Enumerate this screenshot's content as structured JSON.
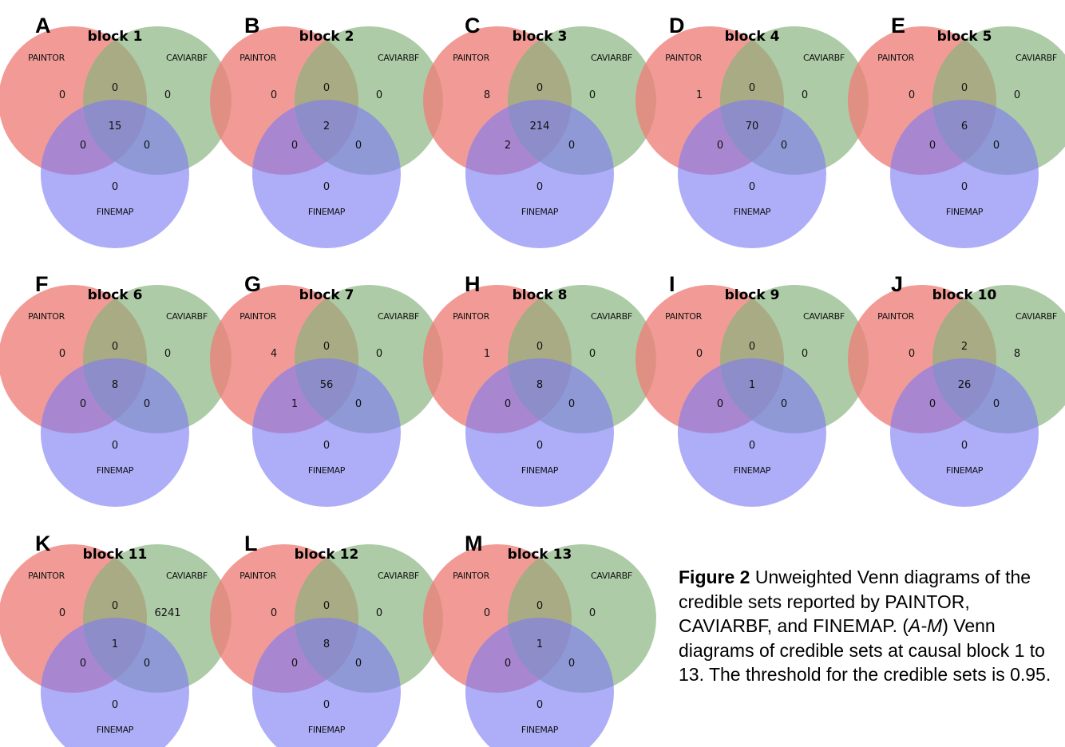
{
  "set_names": [
    "PAINTOR",
    "CAVIARBF",
    "FINEMAP"
  ],
  "colors": {
    "set_a": "#ee7f78",
    "set_b": "#86b27c",
    "set_c": "#7b7bf4"
  },
  "panels": [
    {
      "letter": "A",
      "title": "block 1",
      "counts": {
        "a": "0",
        "b": "0",
        "ab": "0",
        "abc": "15",
        "ac": "0",
        "bc": "0",
        "c": "0"
      }
    },
    {
      "letter": "B",
      "title": "block 2",
      "counts": {
        "a": "0",
        "b": "0",
        "ab": "0",
        "abc": "2",
        "ac": "0",
        "bc": "0",
        "c": "0"
      }
    },
    {
      "letter": "C",
      "title": "block 3",
      "counts": {
        "a": "8",
        "b": "0",
        "ab": "0",
        "abc": "214",
        "ac": "2",
        "bc": "0",
        "c": "0"
      }
    },
    {
      "letter": "D",
      "title": "block 4",
      "counts": {
        "a": "1",
        "b": "0",
        "ab": "0",
        "abc": "70",
        "ac": "0",
        "bc": "0",
        "c": "0"
      }
    },
    {
      "letter": "E",
      "title": "block 5",
      "counts": {
        "a": "0",
        "b": "0",
        "ab": "0",
        "abc": "6",
        "ac": "0",
        "bc": "0",
        "c": "0"
      }
    },
    {
      "letter": "F",
      "title": "block 6",
      "counts": {
        "a": "0",
        "b": "0",
        "ab": "0",
        "abc": "8",
        "ac": "0",
        "bc": "0",
        "c": "0"
      }
    },
    {
      "letter": "G",
      "title": "block 7",
      "counts": {
        "a": "4",
        "b": "0",
        "ab": "0",
        "abc": "56",
        "ac": "1",
        "bc": "0",
        "c": "0"
      }
    },
    {
      "letter": "H",
      "title": "block 8",
      "counts": {
        "a": "1",
        "b": "0",
        "ab": "0",
        "abc": "8",
        "ac": "0",
        "bc": "0",
        "c": "0"
      }
    },
    {
      "letter": "I",
      "title": "block 9",
      "counts": {
        "a": "0",
        "b": "0",
        "ab": "0",
        "abc": "1",
        "ac": "0",
        "bc": "0",
        "c": "0"
      }
    },
    {
      "letter": "J",
      "title": "block 10",
      "counts": {
        "a": "0",
        "b": "8",
        "ab": "2",
        "abc": "26",
        "ac": "0",
        "bc": "0",
        "c": "0"
      }
    },
    {
      "letter": "K",
      "title": "block 11",
      "counts": {
        "a": "0",
        "b": "6241",
        "ab": "0",
        "abc": "1",
        "ac": "0",
        "bc": "0",
        "c": "0"
      }
    },
    {
      "letter": "L",
      "title": "block 12",
      "counts": {
        "a": "0",
        "b": "0",
        "ab": "0",
        "abc": "8",
        "ac": "0",
        "bc": "0",
        "c": "0"
      }
    },
    {
      "letter": "M",
      "title": "block 13",
      "counts": {
        "a": "0",
        "b": "0",
        "ab": "0",
        "abc": "1",
        "ac": "0",
        "bc": "0",
        "c": "0"
      }
    }
  ],
  "caption": {
    "figure_label": "Figure 2",
    "text_1": " Unweighted Venn diagrams of the credible sets reported by PAINTOR, CAVIARBF, and FINEMAP. (",
    "range": "A-M",
    "text_2": ") Venn diagrams of credible sets at causal block 1 to 13. The threshold for the credible sets is 0.95."
  }
}
